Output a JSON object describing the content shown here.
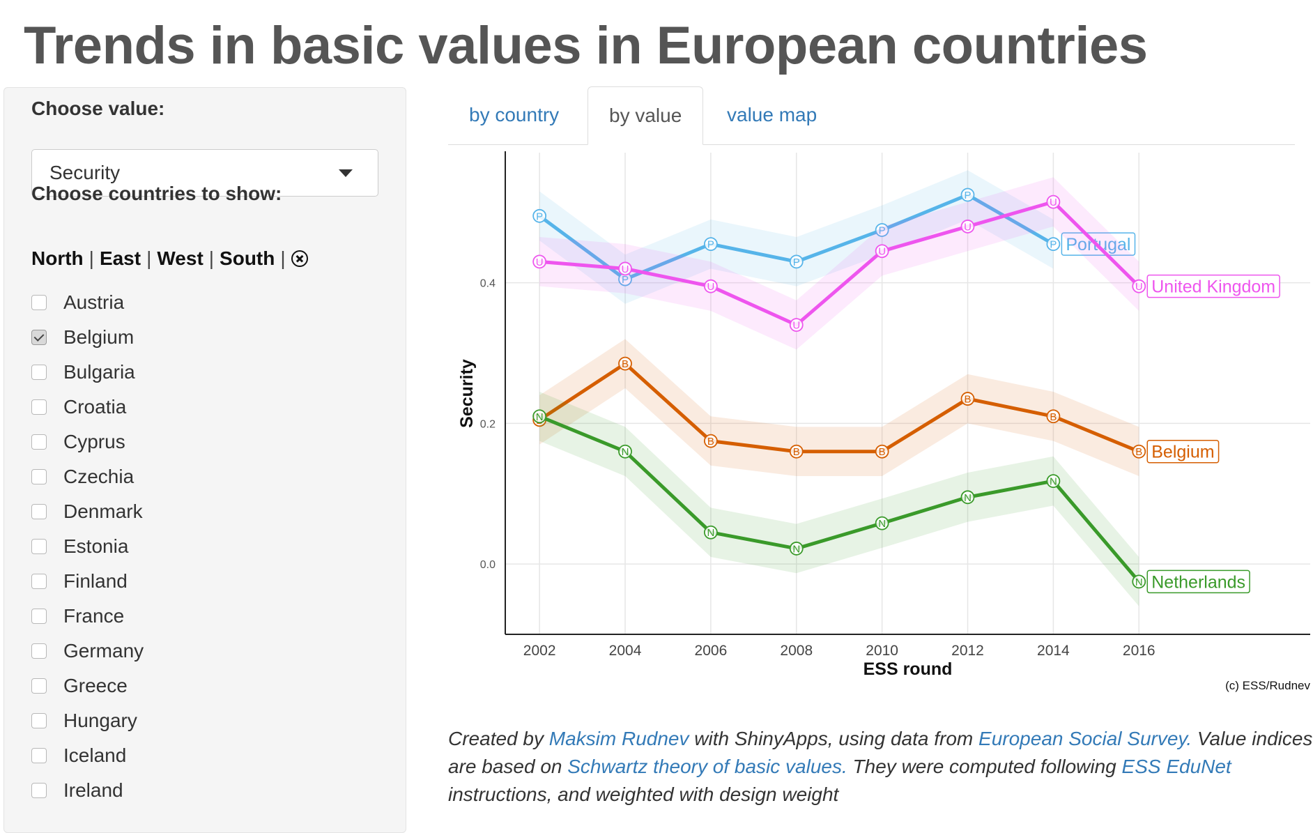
{
  "page": {
    "title": "Trends in basic values in European countries"
  },
  "sidebar": {
    "value_label": "Choose value:",
    "value_selected": "Security",
    "countries_label": "Choose countries to show:",
    "regions": [
      "North",
      "East",
      "West",
      "South"
    ],
    "countries": [
      {
        "name": "Austria",
        "checked": false
      },
      {
        "name": "Belgium",
        "checked": true
      },
      {
        "name": "Bulgaria",
        "checked": false
      },
      {
        "name": "Croatia",
        "checked": false
      },
      {
        "name": "Cyprus",
        "checked": false
      },
      {
        "name": "Czechia",
        "checked": false
      },
      {
        "name": "Denmark",
        "checked": false
      },
      {
        "name": "Estonia",
        "checked": false
      },
      {
        "name": "Finland",
        "checked": false
      },
      {
        "name": "France",
        "checked": false
      },
      {
        "name": "Germany",
        "checked": false
      },
      {
        "name": "Greece",
        "checked": false
      },
      {
        "name": "Hungary",
        "checked": false
      },
      {
        "name": "Iceland",
        "checked": false
      },
      {
        "name": "Ireland",
        "checked": false
      }
    ]
  },
  "tabs": [
    {
      "label": "by country",
      "active": false
    },
    {
      "label": "by value",
      "active": true
    },
    {
      "label": "value map",
      "active": false
    }
  ],
  "chart_data": {
    "type": "line",
    "xlabel": "ESS round",
    "ylabel": "Security",
    "x": [
      2002,
      2004,
      2006,
      2008,
      2010,
      2012,
      2014,
      2016
    ],
    "xticks": [
      "2002",
      "2004",
      "2006",
      "2008",
      "2010",
      "2012",
      "2014",
      "2016"
    ],
    "yticks": [
      "0.0",
      "0.2",
      "0.4"
    ],
    "xlim": [
      2001.2,
      2020
    ],
    "ylim": [
      -0.1,
      0.585
    ],
    "grid": true,
    "caption": "(c) ESS/Rudnev",
    "series": [
      {
        "name": "Portugal",
        "marker": "P",
        "color": "#56b4e9",
        "values": [
          0.495,
          0.405,
          0.455,
          0.43,
          0.475,
          0.525,
          0.455,
          null
        ],
        "band": 0.035
      },
      {
        "name": "United Kingdom",
        "marker": "U",
        "color": "#ee55ee",
        "values": [
          0.43,
          0.42,
          0.395,
          0.34,
          0.445,
          0.48,
          0.515,
          0.395
        ],
        "band": 0.035
      },
      {
        "name": "Belgium",
        "marker": "B",
        "color": "#d55e00",
        "values": [
          0.205,
          0.285,
          0.175,
          0.16,
          0.16,
          0.235,
          0.21,
          0.16
        ],
        "band": 0.035
      },
      {
        "name": "Netherlands",
        "marker": "N",
        "color": "#3a9a2a",
        "values": [
          0.21,
          0.16,
          0.045,
          0.022,
          0.058,
          0.095,
          0.118,
          -0.025
        ],
        "band": 0.035
      }
    ]
  },
  "footer": {
    "t1": "Created by ",
    "link1": "Maksim Rudnev",
    "t2": " with ShinyApps, using data from ",
    "link2": "European Social Survey.",
    "t3": " Value indices are based on ",
    "link3": "Schwartz theory of basic values.",
    "t4": " They were computed following ",
    "link4": "ESS EduNet",
    "t5": " instructions, and weighted with design weight"
  }
}
